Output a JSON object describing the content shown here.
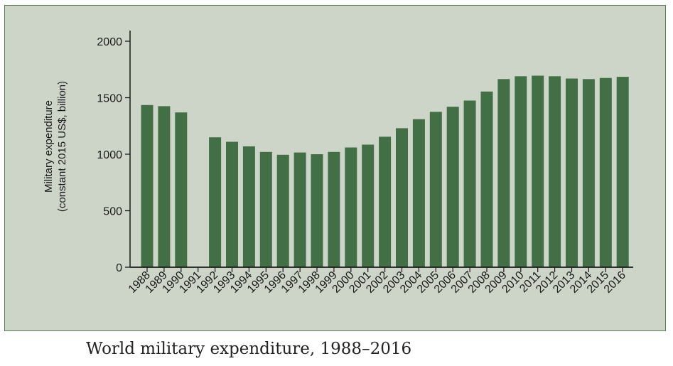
{
  "chart_data": {
    "type": "bar",
    "title": "",
    "xlabel": "",
    "ylabel_lines": [
      "Military expenditure",
      "(constant 2015 US$, billion)"
    ],
    "ylim": [
      0,
      2000
    ],
    "yticks": [
      0,
      500,
      1000,
      1500,
      2000
    ],
    "categories": [
      "1988",
      "1989",
      "1990",
      "1991",
      "1992",
      "1993",
      "1994",
      "1995",
      "1996",
      "1997",
      "1998",
      "1999",
      "2000",
      "2001",
      "2002",
      "2003",
      "2004",
      "2005",
      "2006",
      "2007",
      "2008",
      "2009",
      "2010",
      "2011",
      "2012",
      "2013",
      "2014",
      "2015",
      "2016"
    ],
    "values": [
      1435,
      1425,
      1370,
      null,
      1150,
      1110,
      1070,
      1020,
      995,
      1015,
      1000,
      1020,
      1060,
      1085,
      1155,
      1230,
      1310,
      1375,
      1420,
      1475,
      1555,
      1665,
      1690,
      1695,
      1690,
      1670,
      1665,
      1675,
      1685
    ],
    "grid": false,
    "legend": "none",
    "colors": {
      "bar": "#436f47",
      "panel": "#cdd5c9",
      "axis": "#1a1a1a"
    }
  },
  "caption": "World military expenditure, 1988–2016"
}
